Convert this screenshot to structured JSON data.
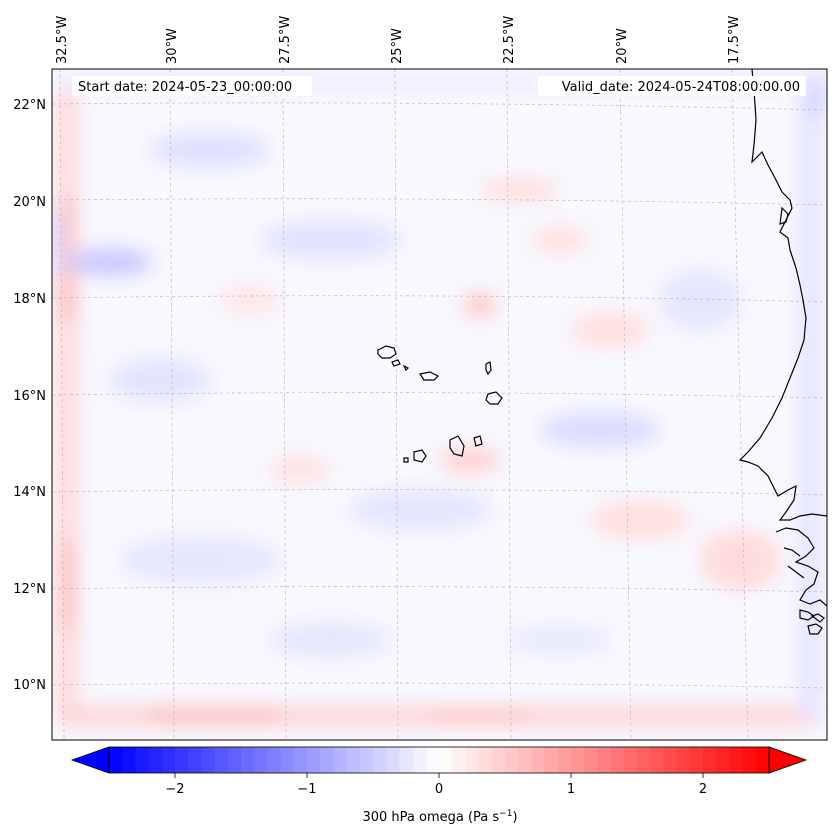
{
  "map": {
    "start_date_label": "Start date: 2024-05-23_00:00:00",
    "valid_date_label": "Valid_date: 2024-05-24T08:00:00.00",
    "longitude_labels": [
      "32.5°W",
      "30°W",
      "27.5°W",
      "25°W",
      "22.5°W",
      "20°W",
      "17.5°W"
    ],
    "latitude_labels": [
      "22°N",
      "20°N",
      "18°N",
      "16°N",
      "14°N",
      "12°N",
      "10°N"
    ],
    "features": [
      "coastline-west-africa",
      "cape-verde-islands"
    ],
    "field_colors": {
      "negative": "#0000ff",
      "neutral": "#ffffff",
      "positive": "#ff0000"
    }
  },
  "colorbar": {
    "label_main": "300 hPa omega (Pa s",
    "label_exp": "−1",
    "label_close": ")",
    "min": -2.5,
    "max": 2.5,
    "ticks": [
      {
        "value": -2,
        "label": "−2"
      },
      {
        "value": -1,
        "label": "−1"
      },
      {
        "value": 0,
        "label": "0"
      },
      {
        "value": 1,
        "label": "1"
      },
      {
        "value": 2,
        "label": "2"
      }
    ],
    "extend": "both"
  }
}
